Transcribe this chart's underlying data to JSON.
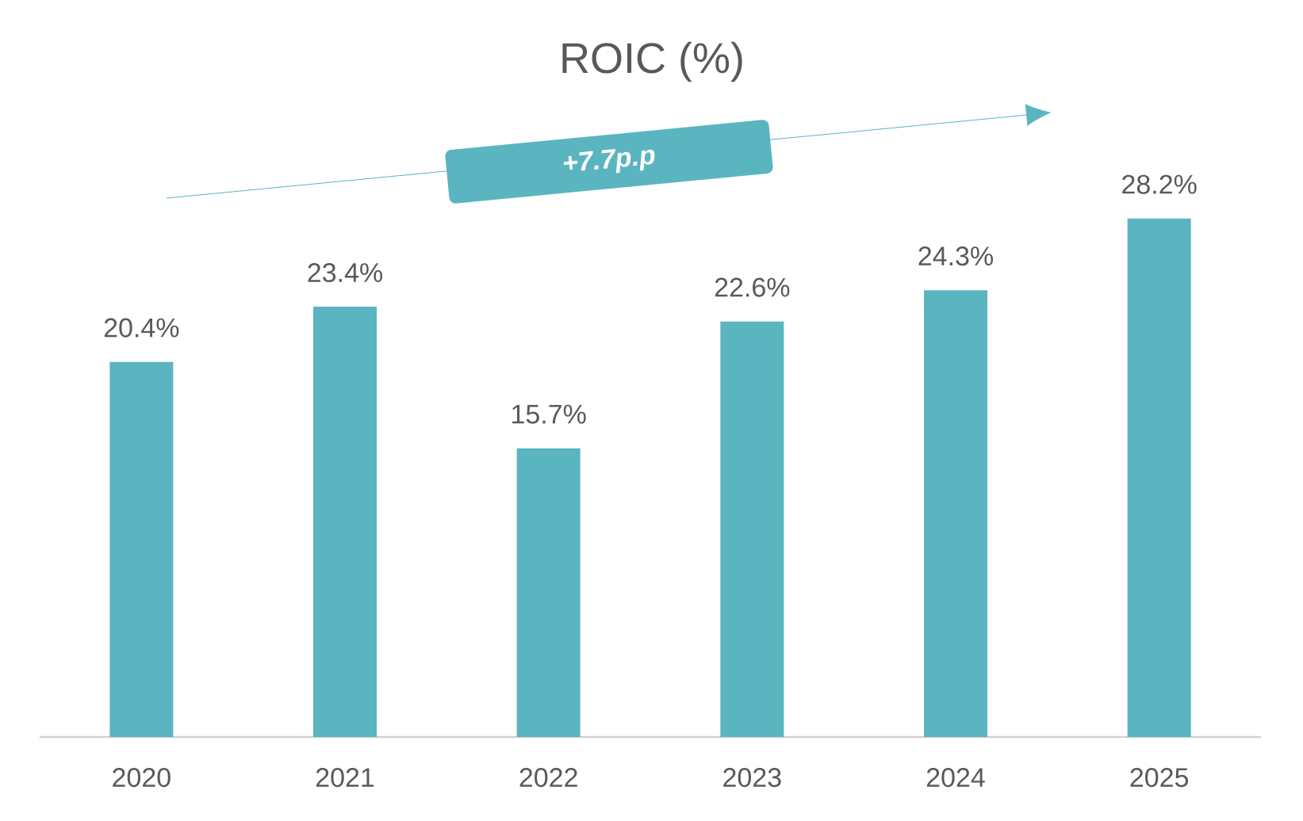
{
  "chart_data": {
    "type": "bar",
    "title": "ROIC (%)",
    "categories": [
      "2020",
      "2021",
      "2022",
      "2023",
      "2024",
      "2025"
    ],
    "values": [
      20.4,
      23.4,
      15.7,
      22.6,
      24.3,
      28.2
    ],
    "value_labels": [
      "20.4%",
      "23.4%",
      "15.7%",
      "22.6%",
      "24.3%",
      "28.2%"
    ],
    "color": "#5ab5c0",
    "annotations": [
      "+7.7p.p"
    ]
  }
}
